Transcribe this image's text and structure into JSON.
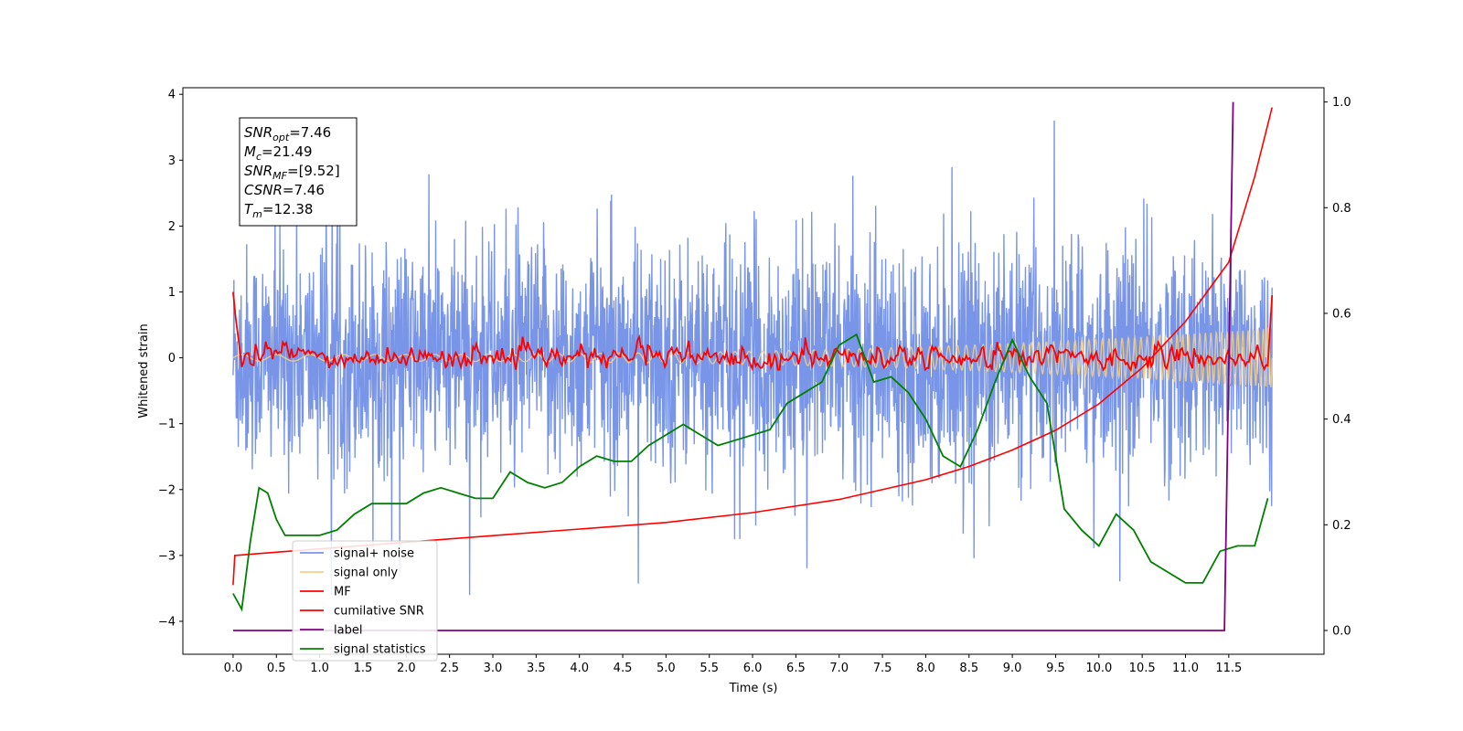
{
  "chart_data": {
    "type": "line",
    "xlabel": "Time (s)",
    "ylabel": "Whitened strain",
    "xlim": [
      -0.58,
      12.6
    ],
    "ylim_left": [
      -4.5,
      4.1
    ],
    "ylim_right": [
      -0.045,
      1.027
    ],
    "x_ticks": [
      0.0,
      0.5,
      1.0,
      1.5,
      2.0,
      2.5,
      3.0,
      3.5,
      4.0,
      4.5,
      5.0,
      5.5,
      6.0,
      6.5,
      7.0,
      7.5,
      8.0,
      8.5,
      9.0,
      9.5,
      10.0,
      10.5,
      11.0,
      11.5
    ],
    "x_tick_labels": [
      "0.0",
      "0.5",
      "1.0",
      "1.5",
      "2.0",
      "2.5",
      "3.0",
      "3.5",
      "4.0",
      "4.5",
      "5.0",
      "5.5",
      "6.0",
      "6.5",
      "7.0",
      "7.5",
      "8.0",
      "8.5",
      "9.0",
      "9.5",
      "10.0",
      "10.5",
      "11.0",
      "11.5"
    ],
    "y_left_ticks": [
      4,
      3,
      2,
      1,
      0,
      -1,
      -2,
      -3,
      -4
    ],
    "y_left_tick_labels": [
      "4",
      "3",
      "2",
      "1",
      "0",
      "−1",
      "−2",
      "−3",
      "−4"
    ],
    "y_right_ticks": [
      1.0,
      0.8,
      0.6,
      0.4,
      0.2,
      0.0
    ],
    "y_right_tick_labels": [
      "1.0",
      "0.8",
      "0.6",
      "0.4",
      "0.2",
      "0.0"
    ],
    "grid": false,
    "legend_position": "lower-left",
    "annotation": [
      {
        "base": "SNR",
        "sub": "opt",
        "value": "=7.46"
      },
      {
        "base": "M",
        "sub": "c",
        "value": "=21.49"
      },
      {
        "base": "SNR",
        "sub": "MF",
        "value": "=[9.52]"
      },
      {
        "base": "CSNR",
        "sub": "",
        "value": "=7.46"
      },
      {
        "base": "T",
        "sub": "m",
        "value": "=12.38"
      }
    ],
    "series": [
      {
        "name": "signal+ noise",
        "axis": "left",
        "color": "#7895e8",
        "x_range": [
          0,
          12.0
        ],
        "amplitude_typical": 1.6,
        "amplitude_peak": 3.6
      },
      {
        "name": "signal only",
        "axis": "left",
        "color": "#f5cf86",
        "x_range": [
          0,
          12.0
        ],
        "amplitude_start": 0.05,
        "amplitude_end": 0.45
      },
      {
        "name": "MF",
        "axis": "left",
        "color": "#ff0000",
        "x_range": [
          0,
          12.0
        ],
        "start_value": 1.0,
        "end_value": 0.95,
        "typical_level": 0.0,
        "peak": 0.32
      },
      {
        "name": "cumilative SNR",
        "axis": "left",
        "color": "#ff0000",
        "x": [
          0.0,
          0.02,
          0.5,
          1.0,
          1.5,
          2.0,
          3.0,
          4.0,
          5.0,
          6.0,
          7.0,
          8.0,
          8.5,
          9.0,
          9.5,
          10.0,
          10.5,
          11.0,
          11.5,
          11.8,
          12.0
        ],
        "y": [
          -3.45,
          -3.0,
          -2.95,
          -2.9,
          -2.85,
          -2.8,
          -2.7,
          -2.6,
          -2.5,
          -2.35,
          -2.15,
          -1.85,
          -1.65,
          -1.4,
          -1.1,
          -0.7,
          -0.15,
          0.55,
          1.45,
          2.75,
          3.8
        ]
      },
      {
        "name": "label",
        "axis": "right",
        "color": "#800080",
        "x": [
          0.0,
          11.45,
          11.45,
          11.55,
          11.55,
          11.55,
          11.55
        ],
        "y": [
          0.0,
          0.0,
          0.0,
          1.0,
          1.0,
          1.0,
          1.0
        ]
      },
      {
        "name": "signal statistics",
        "axis": "right",
        "color": "#008000",
        "x": [
          0.0,
          0.1,
          0.2,
          0.3,
          0.4,
          0.5,
          0.6,
          0.7,
          0.8,
          1.0,
          1.2,
          1.4,
          1.6,
          1.8,
          2.0,
          2.2,
          2.4,
          2.6,
          2.8,
          3.0,
          3.2,
          3.4,
          3.6,
          3.8,
          4.0,
          4.2,
          4.4,
          4.6,
          4.8,
          5.0,
          5.2,
          5.4,
          5.6,
          5.8,
          6.0,
          6.2,
          6.4,
          6.6,
          6.8,
          7.0,
          7.2,
          7.4,
          7.6,
          7.8,
          8.0,
          8.2,
          8.4,
          8.6,
          8.8,
          9.0,
          9.2,
          9.4,
          9.6,
          9.8,
          10.0,
          10.2,
          10.4,
          10.6,
          10.8,
          11.0,
          11.2,
          11.4,
          11.6,
          11.8,
          11.95
        ],
        "y": [
          0.07,
          0.04,
          0.17,
          0.27,
          0.26,
          0.21,
          0.18,
          0.18,
          0.18,
          0.18,
          0.19,
          0.22,
          0.24,
          0.24,
          0.24,
          0.26,
          0.27,
          0.26,
          0.25,
          0.25,
          0.3,
          0.28,
          0.27,
          0.28,
          0.31,
          0.33,
          0.32,
          0.32,
          0.35,
          0.37,
          0.39,
          0.37,
          0.35,
          0.36,
          0.37,
          0.38,
          0.43,
          0.45,
          0.47,
          0.54,
          0.56,
          0.47,
          0.48,
          0.45,
          0.4,
          0.33,
          0.31,
          0.38,
          0.47,
          0.55,
          0.48,
          0.43,
          0.23,
          0.19,
          0.16,
          0.22,
          0.19,
          0.13,
          0.11,
          0.09,
          0.09,
          0.15,
          0.16,
          0.16,
          0.25
        ]
      }
    ]
  }
}
